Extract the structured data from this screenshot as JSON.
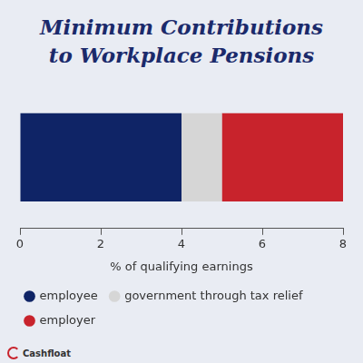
{
  "chart_data": {
    "type": "bar",
    "title": "Minimum Contributions to Workplace Pensions",
    "x_label": "% of qualifying earnings",
    "annotation": "Cashfloat",
    "categories": [
      null
    ],
    "series": [
      {
        "name": "employee",
        "color": "#0f2466",
        "values": [
          4
        ]
      },
      {
        "name": "government through tax relief",
        "color": "#d6d6d6",
        "values": [
          1
        ]
      },
      {
        "name": "employer",
        "color": "#c8232c",
        "values": [
          3
        ]
      }
    ],
    "orientation": "horizontal",
    "stacked": true,
    "xlim": [
      0,
      8
    ],
    "xticks": [
      0,
      2,
      4,
      6,
      8
    ],
    "grid": false,
    "legend": "bottom",
    "tick_labels": "x"
  }
}
